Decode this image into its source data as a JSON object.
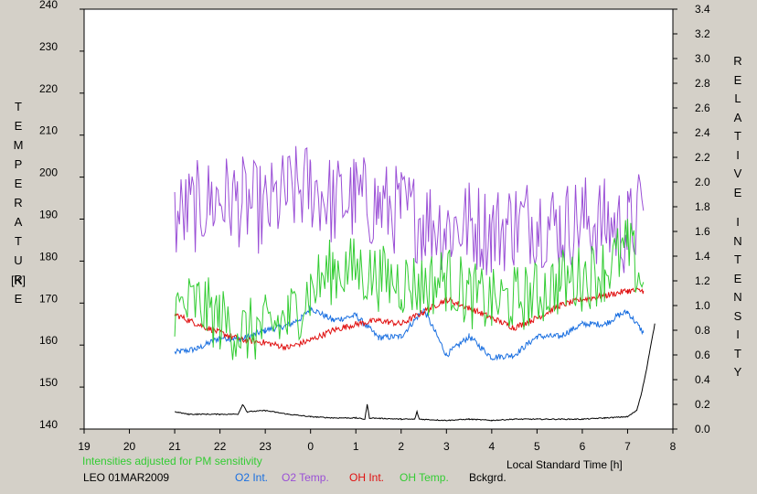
{
  "chart_data": {
    "type": "line",
    "title": "",
    "xlabel": "Local Standard Time [h]",
    "ylabel_left": "TEMPERATURE",
    "ylabel_left_unit": "[K]",
    "ylabel_right": "RELATIVE INTENSITY",
    "x_tick_labels": [
      "19",
      "20",
      "21",
      "22",
      "23",
      "0",
      "1",
      "2",
      "3",
      "4",
      "5",
      "6",
      "7",
      "8"
    ],
    "xlim": [
      19,
      32
    ],
    "ylim_left": [
      140,
      240
    ],
    "ylim_right": [
      0.0,
      3.4
    ],
    "y_left_ticks": [
      140,
      150,
      160,
      170,
      180,
      190,
      200,
      210,
      220,
      230,
      240
    ],
    "y_right_ticks": [
      "0.0",
      "0.2",
      "0.4",
      "0.6",
      "0.8",
      "1.0",
      "1.2",
      "1.4",
      "1.6",
      "1.8",
      "2.0",
      "2.2",
      "2.4",
      "2.6",
      "2.8",
      "3.0",
      "3.2",
      "3.4"
    ],
    "note": "Intensities adjusted for PM sensitivity",
    "site_date": "LEO 01MAR2009",
    "grid": false,
    "legend_position": "bottom",
    "series": [
      {
        "name": "O2 Int.",
        "axis": "right",
        "color": "#1a6fe0",
        "x": [
          21.0,
          21.5,
          22.0,
          22.5,
          23.0,
          23.5,
          23.8,
          24.0,
          24.5,
          25.0,
          25.5,
          26.0,
          26.5,
          27.0,
          27.5,
          28.0,
          28.5,
          29.0,
          29.5,
          30.0,
          30.5,
          30.8,
          31.0,
          31.35
        ],
        "values": [
          0.62,
          0.65,
          0.74,
          0.73,
          0.8,
          0.84,
          0.9,
          0.98,
          0.88,
          0.92,
          0.74,
          0.75,
          0.97,
          0.6,
          0.75,
          0.58,
          0.6,
          0.75,
          0.75,
          0.85,
          0.85,
          0.92,
          0.95,
          0.78
        ]
      },
      {
        "name": "O2 Temp.",
        "axis": "left",
        "color": "#9a4fd6",
        "x": [
          21.0,
          21.5,
          22.0,
          22.5,
          23.0,
          23.5,
          24.0,
          24.5,
          25.0,
          25.5,
          26.0,
          26.5,
          27.0,
          27.5,
          28.0,
          28.5,
          29.0,
          29.5,
          30.0,
          30.5,
          31.0,
          31.35
        ],
        "values": [
          190,
          193,
          195,
          194,
          192,
          196,
          198,
          194,
          195,
          193,
          192,
          190,
          188,
          189,
          187,
          189,
          190,
          188,
          190,
          189,
          187,
          192
        ]
      },
      {
        "name": "OH Int.",
        "axis": "right",
        "color": "#e01010",
        "x": [
          21.0,
          21.5,
          22.0,
          22.5,
          23.0,
          23.5,
          24.0,
          24.5,
          25.0,
          25.5,
          26.0,
          26.5,
          27.0,
          27.5,
          28.0,
          28.5,
          29.0,
          29.5,
          30.0,
          30.5,
          31.0,
          31.35
        ],
        "values": [
          0.93,
          0.85,
          0.78,
          0.72,
          0.7,
          0.66,
          0.72,
          0.8,
          0.85,
          0.88,
          0.85,
          0.95,
          1.05,
          0.98,
          0.9,
          0.82,
          0.9,
          1.0,
          1.05,
          1.08,
          1.12,
          1.12
        ]
      },
      {
        "name": "OH Temp.",
        "axis": "left",
        "color": "#33cc33",
        "x": [
          21.0,
          21.5,
          22.0,
          22.5,
          23.0,
          23.5,
          24.0,
          24.5,
          25.0,
          25.5,
          26.0,
          26.5,
          27.0,
          27.5,
          28.0,
          28.5,
          29.0,
          29.5,
          30.0,
          30.5,
          31.0,
          31.35
        ],
        "values": [
          168,
          170,
          166,
          163,
          164,
          166,
          173,
          178,
          178,
          176,
          175,
          174,
          176,
          172,
          170,
          171,
          172,
          175,
          176,
          178,
          183,
          175
        ]
      },
      {
        "name": "Bckgrd.",
        "axis": "right",
        "color": "#000000",
        "x": [
          21.0,
          21.3,
          21.5,
          22.0,
          22.4,
          22.5,
          22.6,
          23.0,
          23.5,
          24.0,
          24.5,
          25.0,
          25.2,
          25.25,
          25.3,
          26.0,
          26.3,
          26.35,
          26.4,
          27.0,
          27.5,
          28.0,
          28.5,
          29.0,
          29.5,
          30.0,
          30.5,
          31.0,
          31.2,
          31.3,
          31.4,
          31.5,
          31.6
        ],
        "values": [
          0.14,
          0.12,
          0.12,
          0.12,
          0.12,
          0.2,
          0.14,
          0.15,
          0.12,
          0.1,
          0.09,
          0.09,
          0.08,
          0.2,
          0.09,
          0.08,
          0.08,
          0.14,
          0.08,
          0.07,
          0.08,
          0.07,
          0.08,
          0.08,
          0.08,
          0.08,
          0.09,
          0.1,
          0.15,
          0.28,
          0.45,
          0.65,
          0.85
        ]
      }
    ]
  }
}
